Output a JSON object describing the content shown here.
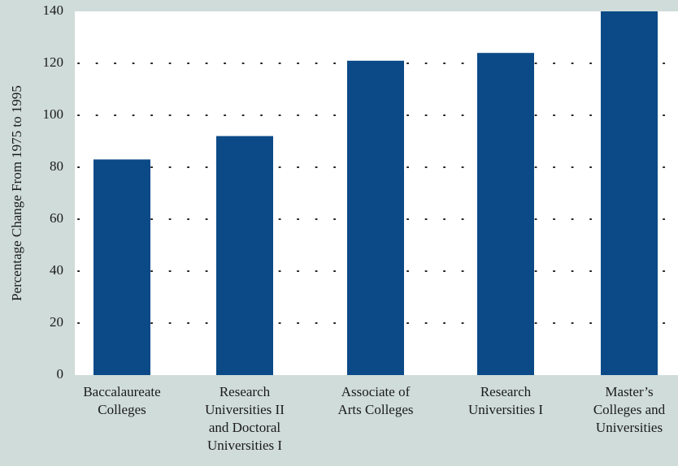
{
  "chart_data": {
    "type": "bar",
    "title": "",
    "xlabel": "",
    "ylabel": "Percentage Change From 1975 to 1995",
    "ylim": [
      0,
      140
    ],
    "yticks": [
      0,
      20,
      40,
      60,
      80,
      100,
      120,
      140
    ],
    "grid": true,
    "categories": [
      [
        "Baccalaureate",
        "Colleges"
      ],
      [
        "Research",
        "Universities II",
        "and Doctoral",
        "Universities I"
      ],
      [
        "Associate of",
        "Arts Colleges"
      ],
      [
        "Research",
        "Universities I"
      ],
      [
        "Master’s",
        "Colleges and",
        "Universities"
      ]
    ],
    "values": [
      83,
      92,
      121,
      124,
      140
    ],
    "colors": {
      "bar": "#0b4a87",
      "background": "#cfdcd9",
      "plot": "#ffffff",
      "grid": "#222222"
    }
  }
}
